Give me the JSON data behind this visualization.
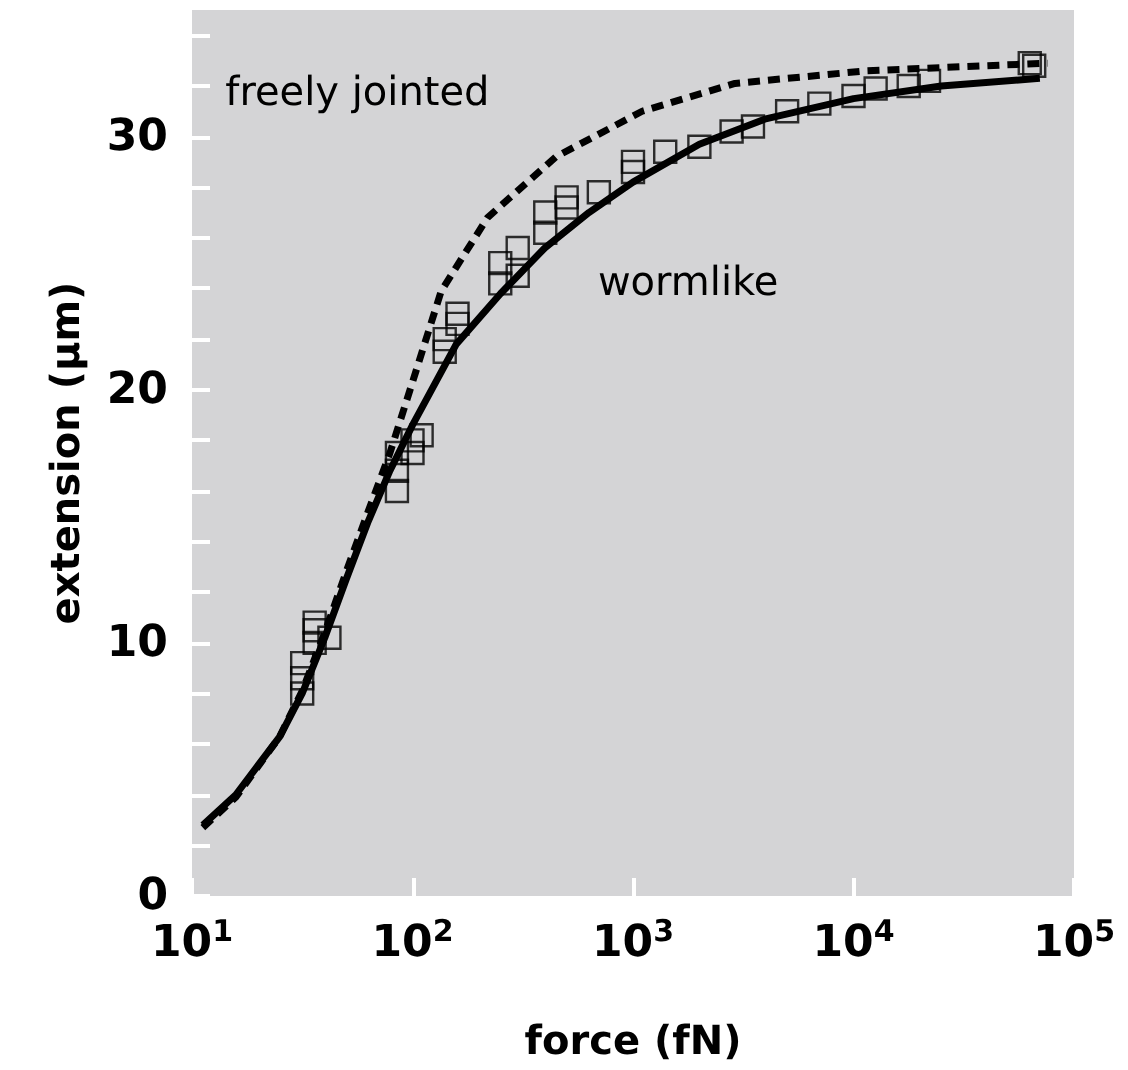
{
  "chart_data": {
    "type": "line",
    "xlabel": "force (fN)",
    "ylabel": "extension (µm)",
    "log": "x",
    "grid": false,
    "xlim": [
      10,
      100000
    ],
    "xticks": [
      {
        "value": 10,
        "label": "10$^{1}$"
      },
      {
        "value": 100,
        "label": "10$^{2}$"
      },
      {
        "value": 1000,
        "label": "10$^{3}$"
      },
      {
        "value": 10000,
        "label": "10$^{4}$"
      },
      {
        "value": 100000,
        "label": "10$^{5}$"
      }
    ],
    "ylim": [
      0,
      35
    ],
    "yticks": [
      0,
      {
        "value": 2,
        "label": null
      },
      {
        "value": 4,
        "label": null
      },
      {
        "value": 6,
        "label": null
      },
      {
        "value": 8,
        "label": null
      },
      10,
      {
        "value": 12,
        "label": null
      },
      {
        "value": 14,
        "label": null
      },
      {
        "value": 16,
        "label": null
      },
      {
        "value": 18,
        "label": null
      },
      20,
      {
        "value": 22,
        "label": null
      },
      {
        "value": 24,
        "label": null
      },
      {
        "value": 26,
        "label": null
      },
      {
        "value": 28,
        "label": null
      },
      30,
      {
        "value": 32,
        "label": null
      },
      {
        "value": 34,
        "label": null
      }
    ],
    "series": [
      {
        "name": "freely jointed",
        "color": "#000000",
        "line_style": "dashed",
        "marker": "none",
        "x": [
          11.2,
          15.8,
          25,
          31.6,
          40,
          50,
          63,
          79,
          100,
          135,
          219,
          447,
          1100,
          2900,
          11500,
          76000
        ],
        "values": [
          2.7,
          3.9,
          6.3,
          8.1,
          10.4,
          12.8,
          15.2,
          17.5,
          20.3,
          23.9,
          26.8,
          29.2,
          31.0,
          32.1,
          32.6,
          32.9
        ]
      },
      {
        "name": "wormlike",
        "color": "#000000",
        "line_style": "solid",
        "marker": "none",
        "x": [
          11.2,
          15.8,
          25,
          31.6,
          40,
          50,
          63,
          79,
          100,
          158,
          251,
          398,
          631,
          1000,
          2000,
          4000,
          10000,
          25000,
          70000
        ],
        "values": [
          2.8,
          4.0,
          6.3,
          8.0,
          10.2,
          12.5,
          14.8,
          16.8,
          18.6,
          21.8,
          23.8,
          25.6,
          27.0,
          28.2,
          29.7,
          30.7,
          31.5,
          32.0,
          32.3
        ]
      },
      {
        "type": "scatter",
        "color": "#000000",
        "marker": "square",
        "x": [
          31.6,
          31.6,
          31.6,
          36,
          36,
          36,
          42,
          85,
          85,
          85,
          100,
          100,
          110,
          140,
          140,
          160,
          160,
          250,
          250,
          300,
          300,
          400,
          400,
          500,
          500,
          700,
          1000,
          1000,
          1400,
          2000,
          2800,
          3500,
          5000,
          7000,
          10000,
          12600,
          17800,
          22000,
          63000,
          66000
        ],
        "values": [
          8.0,
          8.6,
          9.2,
          10.0,
          10.5,
          10.8,
          10.2,
          16.0,
          16.8,
          17.5,
          17.5,
          18.0,
          18.2,
          21.5,
          22.0,
          22.6,
          23.0,
          24.2,
          25.0,
          24.5,
          25.6,
          26.2,
          27.0,
          27.2,
          27.6,
          27.8,
          28.6,
          29.0,
          29.4,
          29.6,
          30.2,
          30.4,
          31.0,
          31.3,
          31.6,
          31.9,
          32.0,
          32.2,
          32.9,
          32.8
        ]
      }
    ]
  }
}
